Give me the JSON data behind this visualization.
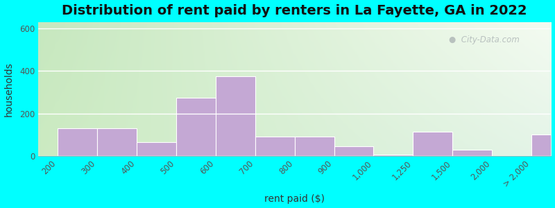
{
  "title": "Distribution of rent paid by renters in La Fayette, GA in 2022",
  "xlabel": "rent paid ($)",
  "ylabel": "households",
  "bar_color": "#c4a8d4",
  "bar_edgecolor": "#ffffff",
  "background_outer": "#00ffff",
  "tick_labels": [
    "200",
    "300",
    "400",
    "500",
    "600",
    "700",
    "800",
    "900",
    "1,000",
    "1,250",
    "1,500",
    "2,000",
    "> 2,000"
  ],
  "values": [
    130,
    130,
    65,
    275,
    375,
    90,
    90,
    45,
    5,
    115,
    28,
    0,
    100
  ],
  "ylim": [
    0,
    630
  ],
  "yticks": [
    0,
    200,
    400,
    600
  ],
  "title_fontsize": 14,
  "label_fontsize": 10,
  "tick_fontsize": 8.5,
  "watermark": "City-Data.com",
  "bg_colors": [
    "#c8e8c0",
    "#d8edd0",
    "#e8f5e0",
    "#f2f9ee",
    "#f8fcf5",
    "#ffffff"
  ],
  "bg_right_colors": [
    "#e0eeee",
    "#eef5f5",
    "#f5fafa",
    "#fafcfc"
  ]
}
